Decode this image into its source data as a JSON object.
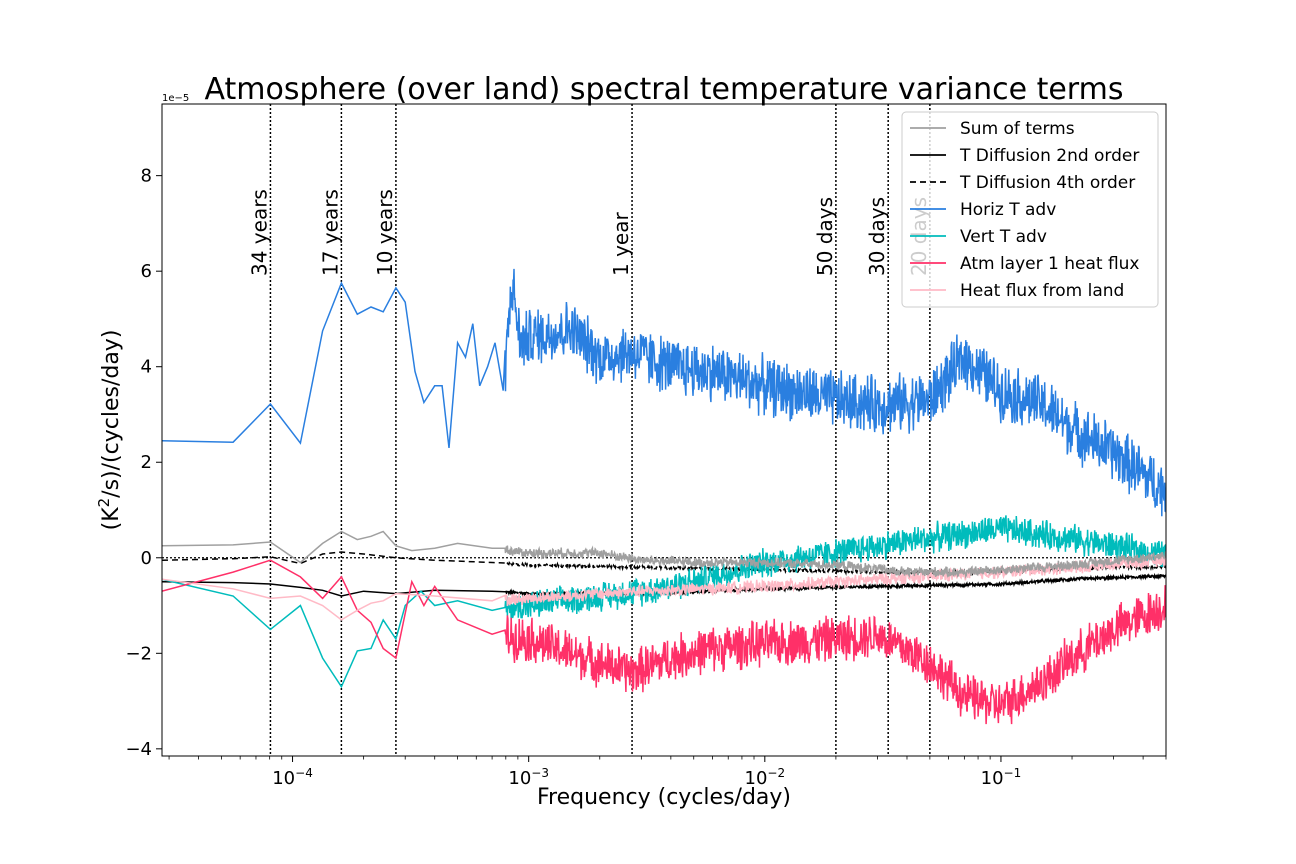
{
  "chart_data": {
    "type": "line",
    "title": "Atmosphere (over land) spectral temperature variance terms",
    "xlabel": "Frequency (cycles/day)",
    "ylabel_main": "(K",
    "ylabel_sup": "2",
    "ylabel_rest": "/s)/(cycles/day)",
    "offset_label": "1e−5",
    "x_scale": "log",
    "xlim": [
      2.8e-05,
      0.5
    ],
    "ylim": [
      -4.15,
      9.5
    ],
    "x_ticks": [
      {
        "value": 0.0001,
        "base": "10",
        "exp": "−4"
      },
      {
        "value": 0.001,
        "base": "10",
        "exp": "−3"
      },
      {
        "value": 0.01,
        "base": "10",
        "exp": "−2"
      },
      {
        "value": 0.1,
        "base": "10",
        "exp": "−1"
      }
    ],
    "y_ticks": [
      {
        "value": -4,
        "label": "−4"
      },
      {
        "value": -2,
        "label": "−2"
      },
      {
        "value": 0,
        "label": "0"
      },
      {
        "value": 2,
        "label": "2"
      },
      {
        "value": 4,
        "label": "4"
      },
      {
        "value": 6,
        "label": "6"
      },
      {
        "value": 8,
        "label": "8"
      }
    ],
    "zero_line": true,
    "legend_position": "top-right",
    "period_lines": [
      {
        "label": "34 years",
        "freq": 8.06e-05
      },
      {
        "label": "17 years",
        "freq": 0.000161
      },
      {
        "label": "10 years",
        "freq": 0.000274
      },
      {
        "label": "1 year",
        "freq": 0.00274
      },
      {
        "label": "50 days",
        "freq": 0.02
      },
      {
        "label": "30 days",
        "freq": 0.0333
      },
      {
        "label": "20 days",
        "freq": 0.05
      }
    ],
    "series": [
      {
        "name": "Sum of terms",
        "color": "#a0a0a0",
        "dash": "",
        "x": [
          2.8e-05,
          5.6e-05,
          8.06e-05,
          0.000108,
          0.000134,
          0.000161,
          0.000188,
          0.000215,
          0.000242,
          0.000274,
          0.00032,
          0.0004,
          0.0005,
          0.0007,
          0.001,
          0.002,
          0.003,
          0.005,
          0.01,
          0.02,
          0.04,
          0.07,
          0.1,
          0.2,
          0.5
        ],
        "y": [
          0.25,
          0.27,
          0.33,
          -0.1,
          0.3,
          0.55,
          0.38,
          0.45,
          0.55,
          0.25,
          0.15,
          0.2,
          0.3,
          0.2,
          0.1,
          0.1,
          -0.05,
          -0.1,
          -0.1,
          -0.15,
          -0.3,
          -0.3,
          -0.25,
          -0.15,
          0.05
        ]
      },
      {
        "name": "T Diffusion 2nd order",
        "color": "#000000",
        "dash": "",
        "x": [
          2.8e-05,
          5.6e-05,
          8.06e-05,
          0.000108,
          0.000134,
          0.000161,
          0.0002,
          0.000274,
          0.0004,
          0.0007,
          0.001,
          0.003,
          0.01,
          0.03,
          0.1,
          0.2,
          0.5
        ],
        "y": [
          -0.5,
          -0.52,
          -0.55,
          -0.62,
          -0.68,
          -0.8,
          -0.7,
          -0.75,
          -0.68,
          -0.7,
          -0.75,
          -0.75,
          -0.65,
          -0.6,
          -0.55,
          -0.45,
          -0.38
        ]
      },
      {
        "name": "T Diffusion 4th order",
        "color": "#000000",
        "dash": "6,4",
        "x": [
          2.8e-05,
          5.6e-05,
          8.06e-05,
          0.000108,
          0.000134,
          0.000161,
          0.0002,
          0.000274,
          0.0004,
          0.0007,
          0.001,
          0.003,
          0.01,
          0.03,
          0.1,
          0.2,
          0.5
        ],
        "y": [
          -0.05,
          -0.02,
          0.02,
          -0.12,
          0.08,
          0.12,
          0.08,
          0.0,
          -0.05,
          -0.1,
          -0.15,
          -0.2,
          -0.25,
          -0.3,
          -0.3,
          -0.22,
          -0.18
        ]
      },
      {
        "name": "Horiz T adv",
        "color": "#2a7fe0",
        "dash": "",
        "x": [
          2.8e-05,
          5.6e-05,
          8.06e-05,
          0.000108,
          0.000134,
          0.000161,
          0.000188,
          0.000215,
          0.000242,
          0.000274,
          0.0003,
          0.00033,
          0.00036,
          0.0004,
          0.00043,
          0.00046,
          0.0005,
          0.00054,
          0.00058,
          0.00062,
          0.00067,
          0.00072,
          0.00078,
          0.00085,
          0.00092,
          0.001,
          0.0015,
          0.002,
          0.00274,
          0.004,
          0.006,
          0.01,
          0.02,
          0.03,
          0.05,
          0.07,
          0.1,
          0.15,
          0.2,
          0.3,
          0.5
        ],
        "y": [
          2.45,
          2.42,
          3.22,
          2.4,
          4.75,
          5.75,
          5.1,
          5.25,
          5.15,
          5.65,
          5.35,
          3.9,
          3.25,
          3.6,
          3.6,
          2.3,
          4.5,
          4.2,
          4.9,
          3.6,
          4.0,
          4.5,
          3.5,
          5.8,
          4.5,
          4.6,
          4.8,
          4.2,
          4.3,
          4.0,
          3.9,
          3.6,
          3.3,
          3.2,
          3.3,
          4.2,
          3.5,
          3.2,
          2.7,
          2.2,
          1.4
        ]
      },
      {
        "name": "Vert T adv",
        "color": "#00bcbc",
        "dash": "",
        "x": [
          2.8e-05,
          5.6e-05,
          8.06e-05,
          0.000108,
          0.000134,
          0.000161,
          0.000188,
          0.000215,
          0.000242,
          0.000274,
          0.0003,
          0.00035,
          0.0004,
          0.0005,
          0.0007,
          0.001,
          0.002,
          0.003,
          0.005,
          0.01,
          0.02,
          0.04,
          0.07,
          0.1,
          0.2,
          0.5
        ],
        "y": [
          -0.45,
          -0.8,
          -1.5,
          -1.0,
          -2.1,
          -2.7,
          -1.95,
          -1.9,
          -1.3,
          -1.7,
          -1.0,
          -0.7,
          -1.0,
          -0.9,
          -1.1,
          -1.0,
          -0.8,
          -0.7,
          -0.5,
          -0.1,
          0.1,
          0.35,
          0.5,
          0.6,
          0.4,
          0.05
        ]
      },
      {
        "name": "Atm layer 1 heat flux",
        "color": "#ff3068",
        "dash": "",
        "x": [
          2.8e-05,
          5.6e-05,
          8.06e-05,
          0.000108,
          0.000134,
          0.000161,
          0.000188,
          0.000215,
          0.000242,
          0.000274,
          0.00032,
          0.00036,
          0.0004,
          0.0005,
          0.0007,
          0.001,
          0.0015,
          0.002,
          0.00274,
          0.004,
          0.006,
          0.01,
          0.02,
          0.03,
          0.05,
          0.07,
          0.1,
          0.15,
          0.2,
          0.3,
          0.5
        ],
        "y": [
          -0.7,
          -0.3,
          -0.05,
          -0.4,
          -0.85,
          -0.4,
          -1.1,
          -1.35,
          -1.9,
          -2.1,
          -0.5,
          -1.0,
          -0.6,
          -1.3,
          -1.6,
          -1.7,
          -2.0,
          -2.2,
          -2.4,
          -2.1,
          -1.9,
          -1.8,
          -1.7,
          -1.6,
          -2.2,
          -2.9,
          -3.1,
          -2.6,
          -2.1,
          -1.5,
          -1.0
        ]
      },
      {
        "name": "Heat flux from land",
        "color": "#ffbac6",
        "dash": "",
        "x": [
          2.8e-05,
          5.6e-05,
          8.06e-05,
          0.000108,
          0.000134,
          0.000161,
          0.000188,
          0.000215,
          0.000242,
          0.000274,
          0.0004,
          0.0007,
          0.001,
          0.002,
          0.003,
          0.01,
          0.03,
          0.1,
          0.2,
          0.5
        ],
        "y": [
          -0.45,
          -0.65,
          -0.85,
          -0.8,
          -1.0,
          -1.3,
          -1.1,
          -0.95,
          -0.9,
          -0.75,
          -0.8,
          -0.9,
          -0.85,
          -0.75,
          -0.7,
          -0.6,
          -0.45,
          -0.3,
          -0.2,
          -0.05
        ]
      }
    ]
  }
}
